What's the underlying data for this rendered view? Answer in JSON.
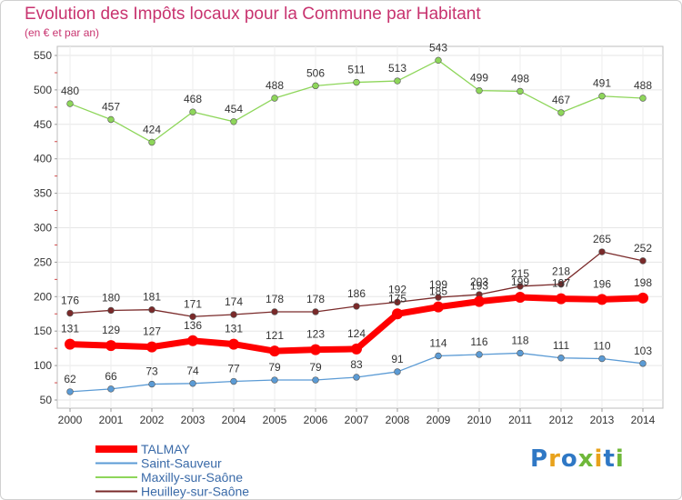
{
  "title": "Evolution des Impôts locaux pour la Commune par Habitant",
  "subtitle": "(en € et par an)",
  "logo": {
    "text": "Proxiti",
    "colors": [
      "#2f78c5",
      "#e8a21c",
      "#2f78c5",
      "#6fb83a",
      "#e8a21c",
      "#2f78c5",
      "#6fb83a"
    ]
  },
  "chart_data": {
    "type": "line",
    "x": [
      2000,
      2001,
      2002,
      2003,
      2004,
      2005,
      2006,
      2007,
      2008,
      2009,
      2010,
      2011,
      2012,
      2013,
      2014
    ],
    "ylim": [
      50,
      550
    ],
    "yticks": [
      50,
      100,
      150,
      200,
      250,
      300,
      350,
      400,
      450,
      500,
      550
    ],
    "grid": true,
    "legend": "bottom-left",
    "series": [
      {
        "name": "TALMAY",
        "color": "#ff0000",
        "emphasis": true,
        "values": [
          131,
          129,
          127,
          136,
          131,
          121,
          123,
          124,
          175,
          185,
          193,
          199,
          197,
          196,
          198
        ],
        "labels": [
          "131",
          "129",
          "127",
          "136",
          "131",
          "121",
          "123",
          "124",
          "175",
          "185",
          "193",
          "199",
          "197",
          "196",
          "198"
        ]
      },
      {
        "name": "Saint-Sauveur",
        "color": "#5b9bd5",
        "emphasis": false,
        "values": [
          62,
          66,
          73,
          74,
          77,
          79,
          79,
          83,
          91,
          114,
          116,
          118,
          111,
          110,
          103
        ],
        "labels": [
          "62",
          "66",
          "73",
          "74",
          "77",
          "79",
          "79",
          "83",
          "91",
          "114",
          "116",
          "118",
          "111",
          "110",
          "103"
        ]
      },
      {
        "name": "Maxilly-sur-Saône",
        "color": "#8ed65a",
        "emphasis": false,
        "values": [
          480,
          457,
          424,
          468,
          454,
          488,
          506,
          511,
          513,
          543,
          499,
          498,
          467,
          491,
          488
        ],
        "labels": [
          "480",
          "457",
          "424",
          "468",
          "454",
          "488",
          "506",
          "511",
          "513",
          "543",
          "499",
          "498",
          "467",
          "491",
          "488"
        ]
      },
      {
        "name": "Heuilley-sur-Saône",
        "color": "#7a2a2a",
        "emphasis": false,
        "values": [
          176,
          180,
          181,
          171,
          174,
          178,
          178,
          186,
          192,
          199,
          203,
          215,
          218,
          265,
          252
        ],
        "labels": [
          "176",
          "180",
          "181",
          "171",
          "174",
          "178",
          "178",
          "186",
          "192",
          "199",
          "203",
          "215",
          "218",
          "265",
          "252"
        ]
      }
    ]
  }
}
